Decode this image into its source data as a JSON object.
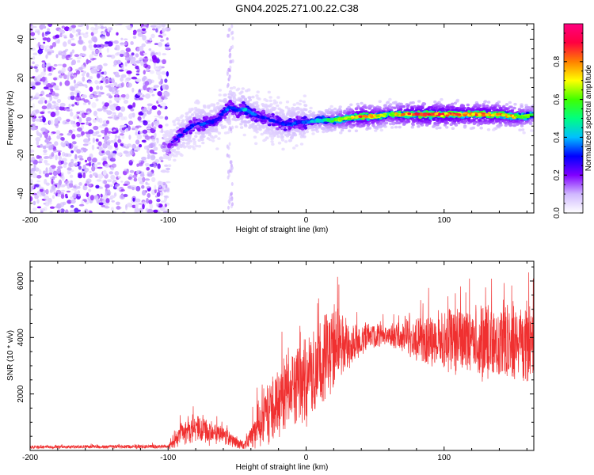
{
  "title": "GN04.2025.271.00.22.C38",
  "colors": {
    "snr_line": "#f03030",
    "colorbar": [
      "#ffffff",
      "#d0b8ff",
      "#8000ff",
      "#0000ff",
      "#00c0ff",
      "#00ff80",
      "#40ff00",
      "#ffff00",
      "#ff8000",
      "#ff0040",
      "#ff0080"
    ]
  },
  "chart_data": [
    {
      "type": "heatmap",
      "name": "spectrogram",
      "xlabel": "Height of straight line (km)",
      "ylabel": "Frequency (Hz)",
      "xlim": [
        -200,
        165
      ],
      "ylim": [
        -50,
        48
      ],
      "xticks": [
        -200,
        -100,
        0,
        100
      ],
      "yticks": [
        -40,
        -20,
        0,
        20,
        40
      ],
      "colorbar": {
        "label": "Normalized spectral amplitude",
        "range": [
          0,
          1
        ],
        "ticks": [
          0.0,
          0.2,
          0.4,
          0.6,
          0.8
        ]
      },
      "ridge": {
        "x": [
          -100,
          -95,
          -90,
          -85,
          -80,
          -75,
          -70,
          -65,
          -60,
          -55,
          -50,
          -45,
          -40,
          -35,
          -30,
          -25,
          -20,
          -15,
          -10,
          -5,
          0,
          10,
          20,
          30,
          40,
          50,
          60,
          70,
          80,
          90,
          100,
          110,
          120,
          130,
          140,
          150,
          160,
          165
        ],
        "y": [
          -16,
          -12,
          -9,
          -6,
          -4,
          -4,
          -3,
          -2,
          2,
          5,
          3,
          4,
          2,
          0,
          -1,
          -2,
          -3,
          -4,
          -4,
          -3,
          -3,
          -2,
          -2,
          -1,
          0,
          0,
          1,
          1,
          1,
          1,
          1,
          1,
          1,
          1,
          1,
          0,
          0,
          1
        ],
        "amplitude": [
          0.2,
          0.25,
          0.3,
          0.3,
          0.3,
          0.35,
          0.3,
          0.3,
          0.3,
          0.35,
          0.3,
          0.4,
          0.35,
          0.3,
          0.3,
          0.3,
          0.3,
          0.3,
          0.35,
          0.3,
          0.35,
          0.45,
          0.55,
          0.65,
          0.8,
          0.7,
          0.6,
          0.75,
          0.8,
          0.85,
          0.8,
          0.8,
          0.75,
          0.8,
          0.75,
          0.7,
          0.6,
          0.5
        ]
      }
    },
    {
      "type": "line",
      "name": "snr",
      "xlabel": "Height of straight line (km)",
      "ylabel": "SNR (10 * v/v)",
      "xlim": [
        -200,
        165
      ],
      "ylim": [
        0,
        6700
      ],
      "xticks": [
        -200,
        -100,
        0,
        100
      ],
      "yticks": [
        2000,
        4000,
        6000
      ],
      "envelope": {
        "x": [
          -200,
          -150,
          -100,
          -95,
          -90,
          -80,
          -70,
          -60,
          -50,
          -45,
          -40,
          -35,
          -30,
          -25,
          -20,
          -10,
          0,
          10,
          20,
          30,
          40,
          50,
          60,
          70,
          80,
          90,
          100,
          110,
          120,
          130,
          140,
          150,
          160,
          165
        ],
        "mean": [
          120,
          130,
          140,
          300,
          600,
          800,
          650,
          500,
          250,
          200,
          450,
          900,
          1200,
          1500,
          1800,
          2200,
          2500,
          3000,
          3600,
          3800,
          3900,
          4050,
          4100,
          4000,
          3950,
          3900,
          3900,
          3900,
          3900,
          3900,
          3800,
          3800,
          3800,
          3700
        ],
        "spread": [
          100,
          100,
          120,
          400,
          700,
          800,
          700,
          500,
          300,
          250,
          700,
          1300,
          1700,
          2000,
          2300,
          2300,
          2600,
          2600,
          2400,
          1600,
          1000,
          800,
          600,
          900,
          1400,
          1600,
          1800,
          1900,
          2000,
          2200,
          2200,
          2300,
          2300,
          2200
        ]
      }
    }
  ]
}
